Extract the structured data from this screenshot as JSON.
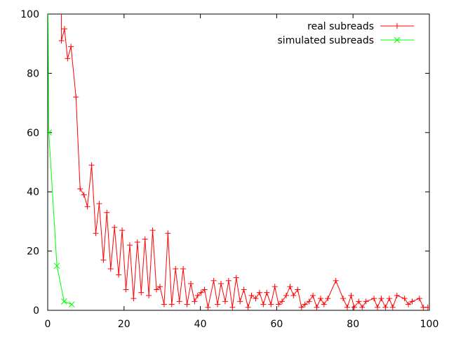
{
  "chart_data": {
    "type": "line",
    "title": "",
    "xlabel": "",
    "ylabel": "",
    "xlim": [
      0,
      100
    ],
    "ylim": [
      0,
      100
    ],
    "x_ticks": [
      0,
      20,
      40,
      60,
      80,
      100
    ],
    "y_ticks": [
      0,
      20,
      40,
      60,
      80,
      100
    ],
    "grid": false,
    "legend_position": "top-right",
    "series": [
      {
        "name": "real subreads",
        "color": "#ff0000",
        "marker": "plus",
        "points": [
          [
            3.6,
            100
          ],
          [
            3.6,
            91
          ],
          [
            4.4,
            95
          ],
          [
            5.2,
            85
          ],
          [
            6.1,
            89
          ],
          [
            7.4,
            72
          ],
          [
            8.5,
            41
          ],
          [
            9.5,
            39
          ],
          [
            10.4,
            35
          ],
          [
            11.5,
            49
          ],
          [
            12.6,
            26
          ],
          [
            13.5,
            36
          ],
          [
            14.6,
            17
          ],
          [
            15.5,
            33
          ],
          [
            16.5,
            14
          ],
          [
            17.5,
            28
          ],
          [
            18.6,
            12
          ],
          [
            19.5,
            27
          ],
          [
            20.5,
            7
          ],
          [
            21.5,
            22
          ],
          [
            22.5,
            4
          ],
          [
            23.5,
            23
          ],
          [
            24.5,
            6
          ],
          [
            25.5,
            24
          ],
          [
            26.5,
            5
          ],
          [
            27.5,
            27
          ],
          [
            28.5,
            7
          ],
          [
            29.4,
            8
          ],
          [
            30.5,
            2
          ],
          [
            31.5,
            26
          ],
          [
            32.5,
            2
          ],
          [
            33.5,
            14
          ],
          [
            34.5,
            3
          ],
          [
            35.5,
            14
          ],
          [
            36.5,
            2
          ],
          [
            37.5,
            9
          ],
          [
            38.5,
            3
          ],
          [
            39.3,
            5
          ],
          [
            40.2,
            6
          ],
          [
            41.1,
            7
          ],
          [
            42.0,
            1
          ],
          [
            43.5,
            10
          ],
          [
            44.5,
            2
          ],
          [
            45.4,
            9
          ],
          [
            46.5,
            3
          ],
          [
            47.4,
            10
          ],
          [
            48.4,
            1
          ],
          [
            49.4,
            11
          ],
          [
            50.4,
            3
          ],
          [
            51.4,
            7
          ],
          [
            52.5,
            1
          ],
          [
            53.4,
            5
          ],
          [
            54.5,
            4
          ],
          [
            55.5,
            6
          ],
          [
            56.5,
            2
          ],
          [
            57.4,
            6
          ],
          [
            58.5,
            2
          ],
          [
            59.5,
            8
          ],
          [
            60.5,
            2
          ],
          [
            61.4,
            3
          ],
          [
            62.5,
            5
          ],
          [
            63.5,
            8
          ],
          [
            64.4,
            5
          ],
          [
            65.5,
            7
          ],
          [
            66.5,
            1
          ],
          [
            67.4,
            2
          ],
          [
            68.5,
            3
          ],
          [
            69.5,
            5
          ],
          [
            70.5,
            1
          ],
          [
            71.5,
            4
          ],
          [
            72.4,
            2
          ],
          [
            73.4,
            4
          ],
          [
            75.5,
            10
          ],
          [
            77.4,
            4
          ],
          [
            78.5,
            1
          ],
          [
            79.5,
            5
          ],
          [
            80.3,
            1
          ],
          [
            81.5,
            3
          ],
          [
            82.4,
            1
          ],
          [
            83.4,
            3
          ],
          [
            85.5,
            4
          ],
          [
            86.4,
            1
          ],
          [
            87.4,
            4
          ],
          [
            88.5,
            1
          ],
          [
            89.5,
            4
          ],
          [
            90.4,
            1
          ],
          [
            91.5,
            5
          ],
          [
            93.5,
            4
          ],
          [
            94.5,
            2
          ],
          [
            95.5,
            3
          ],
          [
            97.4,
            4
          ],
          [
            98.4,
            1
          ],
          [
            99.6,
            1
          ]
        ]
      },
      {
        "name": "simulated subreads",
        "color": "#00ff00",
        "marker": "cross",
        "points": [
          [
            0.1,
            100
          ],
          [
            0.3,
            60
          ],
          [
            2.4,
            15
          ],
          [
            4.3,
            3
          ],
          [
            6.3,
            2
          ]
        ]
      }
    ]
  }
}
